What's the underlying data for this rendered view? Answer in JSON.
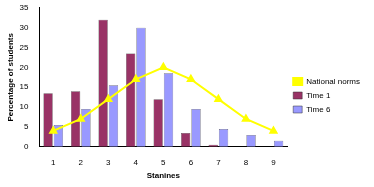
{
  "chart_data": {
    "type": "bar",
    "x_label": "Stanines",
    "y_label": "Percentage of students",
    "categories": [
      "1",
      "2",
      "3",
      "4",
      "5",
      "6",
      "7",
      "8",
      "9"
    ],
    "series": [
      {
        "name": "Time 1",
        "color": "#993366",
        "values": [
          13.5,
          14,
          32,
          23.5,
          12,
          3.5,
          0.5,
          0,
          0
        ]
      },
      {
        "name": "Time 6",
        "color": "#9999ff",
        "values": [
          5.5,
          9.5,
          15.5,
          30,
          18.5,
          9.5,
          4.5,
          3,
          1.5
        ]
      },
      {
        "name": "National norms",
        "type": "line",
        "color": "#ffff00",
        "marker": "triangle",
        "values": [
          4,
          7,
          12,
          17,
          20,
          17,
          12,
          7,
          4
        ]
      }
    ],
    "ylim": [
      0,
      35
    ],
    "yticks": [
      0,
      5,
      10,
      15,
      20,
      25,
      30,
      35
    ],
    "grid": false,
    "legend": "right"
  }
}
